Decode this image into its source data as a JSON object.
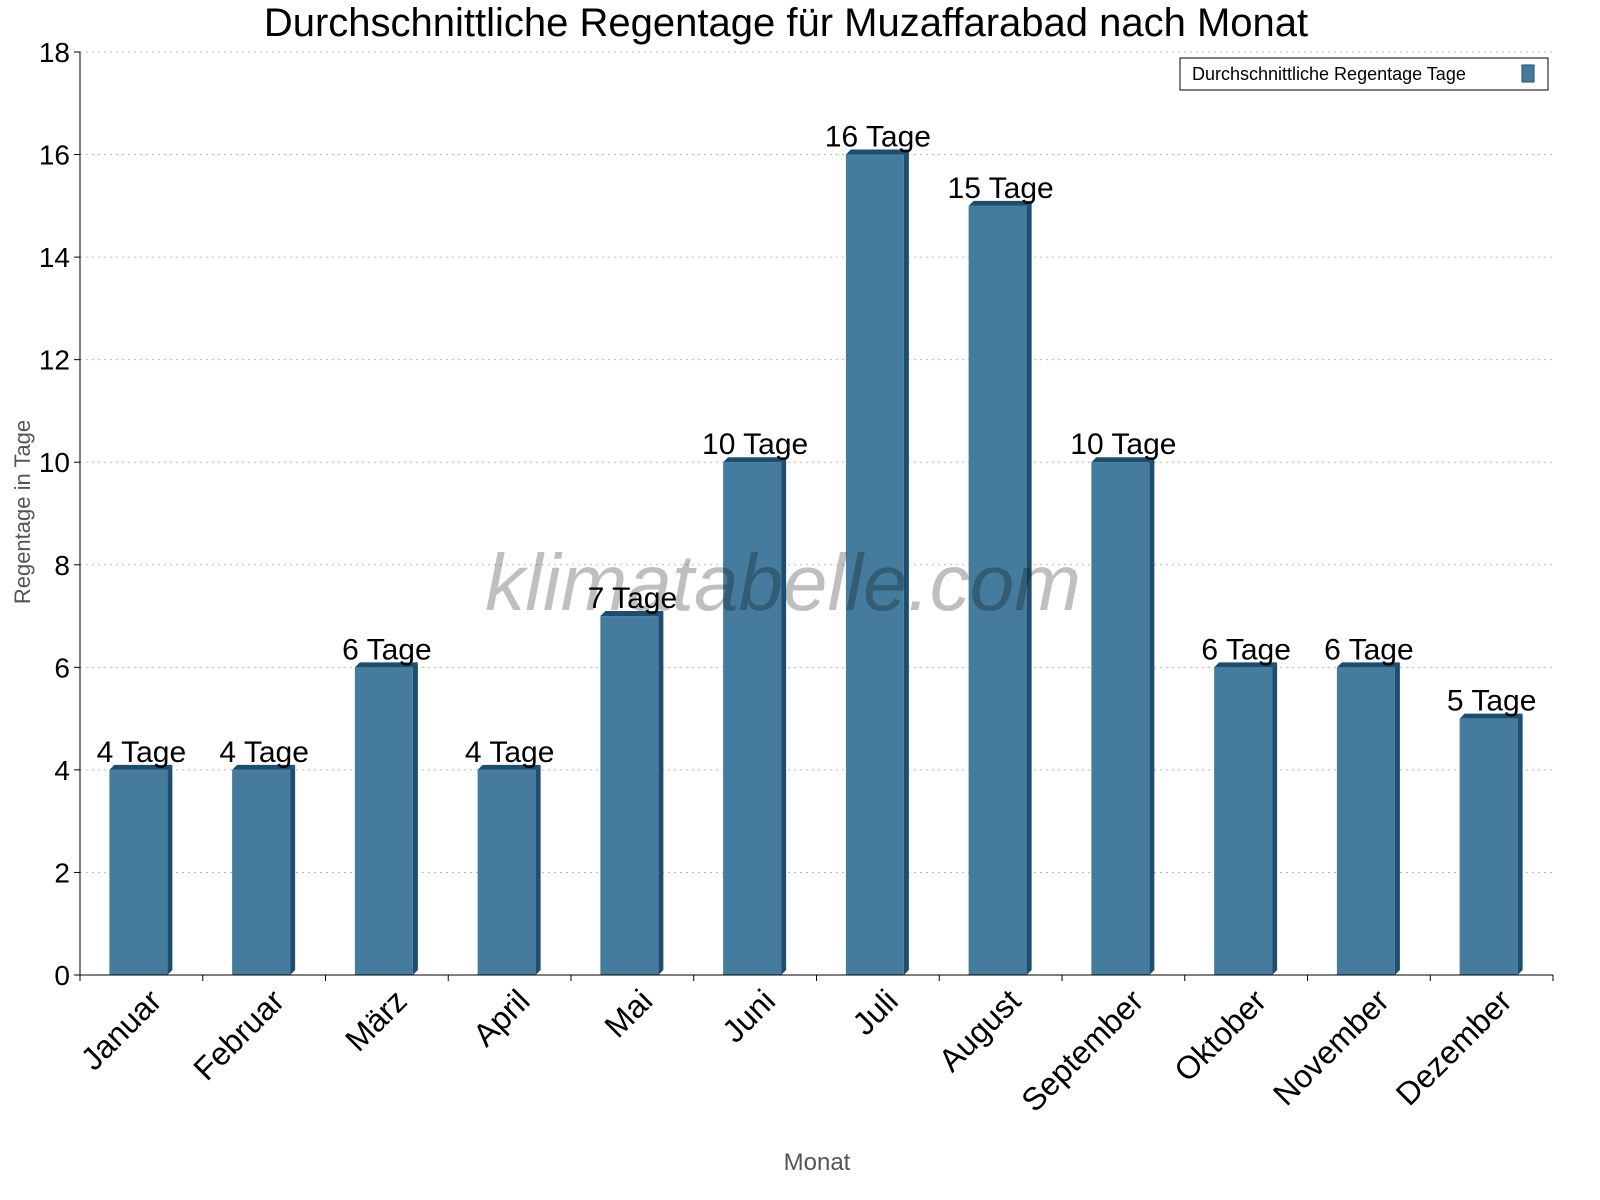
{
  "chart_data": {
    "type": "bar",
    "title": "Durchschnittliche Regentage für Muzaffarabad nach Monat",
    "xlabel": "Monat",
    "ylabel": "Regentage in Tage",
    "categories": [
      "Januar",
      "Februar",
      "März",
      "April",
      "Mai",
      "Juni",
      "Juli",
      "August",
      "September",
      "Oktober",
      "November",
      "Dezember"
    ],
    "series": [
      {
        "name": "Durchschnittliche Regentage Tage",
        "values": [
          4,
          4,
          6,
          4,
          7,
          10,
          16,
          15,
          10,
          6,
          6,
          5
        ],
        "color": "#457b9d",
        "side_color": "#1d4e6f"
      }
    ],
    "data_labels": [
      "4 Tage",
      "4 Tage",
      "6 Tage",
      "4 Tage",
      "7 Tage",
      "10 Tage",
      "16 Tage",
      "15 Tage",
      "10 Tage",
      "6 Tage",
      "6 Tage",
      "5 Tage"
    ],
    "ylim": [
      0,
      18
    ],
    "yticks": [
      0,
      2,
      4,
      6,
      8,
      10,
      12,
      14,
      16,
      18
    ],
    "grid": true,
    "legend": "top-right",
    "watermark": "klimatabelle.com"
  }
}
